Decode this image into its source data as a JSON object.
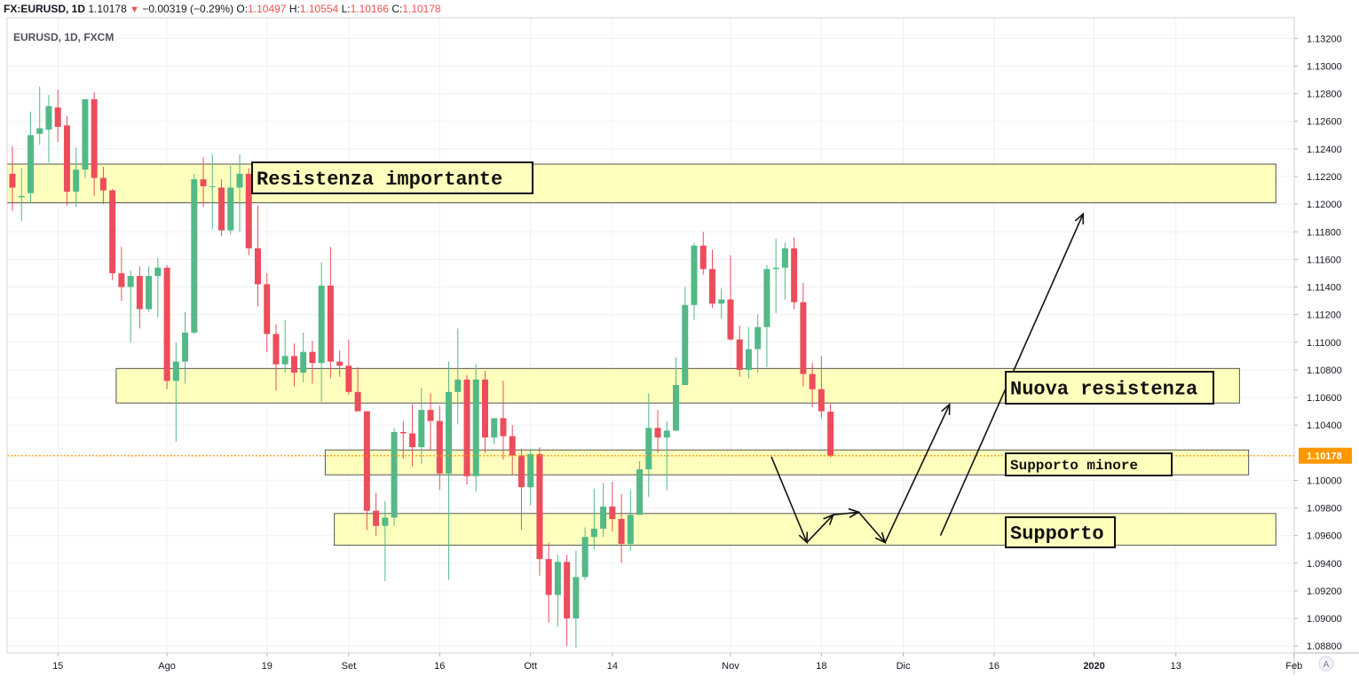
{
  "header": {
    "symbol": "FX:EURUSD, 1D",
    "last": "1.10178",
    "change_arrow": "▼",
    "change": "−0.00319 (−0.29%)",
    "o_label": "O:",
    "o_value": "1.10497",
    "h_label": "H:",
    "h_value": "1.10554",
    "l_label": "L:",
    "l_value": "1.10166",
    "c_label": "C:",
    "c_value": "1.10178"
  },
  "chart_title": "EURUSD, 1D, FXCM",
  "scale_button": "A",
  "colors": {
    "up": "#53b987",
    "down": "#eb4d5c",
    "zone_fill": "#ffffbd",
    "zone_stroke": "#555555",
    "price_line": "#ff9800",
    "grid": "#eef0f3"
  },
  "chart_data": {
    "type": "candlestick",
    "title": "EURUSD, 1D, FXCM",
    "ylim": [
      1.0875,
      1.1335
    ],
    "y_ticks": [
      "1.13200",
      "1.13000",
      "1.12800",
      "1.12600",
      "1.12400",
      "1.12200",
      "1.12000",
      "1.11800",
      "1.11600",
      "1.11400",
      "1.11200",
      "1.11000",
      "1.10800",
      "1.10600",
      "1.10400",
      "1.10000",
      "1.09800",
      "1.09600",
      "1.09400",
      "1.09200",
      "1.09000",
      "1.08800"
    ],
    "x_ticks": [
      {
        "label": "15",
        "index": 5
      },
      {
        "label": "Ago",
        "index": 17
      },
      {
        "label": "19",
        "index": 28
      },
      {
        "label": "Set",
        "index": 37
      },
      {
        "label": "16",
        "index": 47
      },
      {
        "label": "Ott",
        "index": 57
      },
      {
        "label": "14",
        "index": 66
      },
      {
        "label": "Nov",
        "index": 79
      },
      {
        "label": "18",
        "index": 89
      },
      {
        "label": "Dic",
        "index": 98
      },
      {
        "label": "16",
        "index": 108
      },
      {
        "label": "2020",
        "index": 119
      },
      {
        "label": "13",
        "index": 128
      },
      {
        "label": "Feb",
        "index": 141
      }
    ],
    "last_price_label": "1.10178",
    "last_price": 1.10178,
    "candles": [
      {
        "o": 1.1222,
        "h": 1.1242,
        "l": 1.1195,
        "c": 1.1212
      },
      {
        "o": 1.1205,
        "h": 1.1226,
        "l": 1.1188,
        "c": 1.1206
      },
      {
        "o": 1.1208,
        "h": 1.1267,
        "l": 1.1201,
        "c": 1.125
      },
      {
        "o": 1.1251,
        "h": 1.1285,
        "l": 1.1243,
        "c": 1.1255
      },
      {
        "o": 1.1254,
        "h": 1.1279,
        "l": 1.123,
        "c": 1.1271
      },
      {
        "o": 1.127,
        "h": 1.1283,
        "l": 1.1245,
        "c": 1.1256
      },
      {
        "o": 1.1257,
        "h": 1.1264,
        "l": 1.1199,
        "c": 1.1209
      },
      {
        "o": 1.1209,
        "h": 1.1241,
        "l": 1.1198,
        "c": 1.1225
      },
      {
        "o": 1.1225,
        "h": 1.1276,
        "l": 1.1219,
        "c": 1.1276
      },
      {
        "o": 1.1276,
        "h": 1.1281,
        "l": 1.1206,
        "c": 1.1219
      },
      {
        "o": 1.1219,
        "h": 1.1227,
        "l": 1.12,
        "c": 1.121
      },
      {
        "o": 1.121,
        "h": 1.1211,
        "l": 1.1145,
        "c": 1.115
      },
      {
        "o": 1.115,
        "h": 1.1169,
        "l": 1.113,
        "c": 1.114
      },
      {
        "o": 1.114,
        "h": 1.1152,
        "l": 1.11,
        "c": 1.1148
      },
      {
        "o": 1.1148,
        "h": 1.1155,
        "l": 1.111,
        "c": 1.1124
      },
      {
        "o": 1.1124,
        "h": 1.1155,
        "l": 1.1122,
        "c": 1.1148
      },
      {
        "o": 1.1148,
        "h": 1.1161,
        "l": 1.1118,
        "c": 1.1154
      },
      {
        "o": 1.1154,
        "h": 1.1156,
        "l": 1.1066,
        "c": 1.1072
      },
      {
        "o": 1.1072,
        "h": 1.11,
        "l": 1.1028,
        "c": 1.1086
      },
      {
        "o": 1.1086,
        "h": 1.1122,
        "l": 1.107,
        "c": 1.1107
      },
      {
        "o": 1.1107,
        "h": 1.1222,
        "l": 1.1106,
        "c": 1.1218
      },
      {
        "o": 1.1218,
        "h": 1.1234,
        "l": 1.1198,
        "c": 1.1213
      },
      {
        "o": 1.1213,
        "h": 1.1236,
        "l": 1.1182,
        "c": 1.1213
      },
      {
        "o": 1.1212,
        "h": 1.1218,
        "l": 1.1177,
        "c": 1.1181
      },
      {
        "o": 1.1181,
        "h": 1.1228,
        "l": 1.1178,
        "c": 1.1212
      },
      {
        "o": 1.1212,
        "h": 1.1236,
        "l": 1.118,
        "c": 1.1222
      },
      {
        "o": 1.1222,
        "h": 1.1226,
        "l": 1.1163,
        "c": 1.1168
      },
      {
        "o": 1.1168,
        "h": 1.1199,
        "l": 1.1126,
        "c": 1.1142
      },
      {
        "o": 1.1142,
        "h": 1.115,
        "l": 1.1093,
        "c": 1.1106
      },
      {
        "o": 1.1106,
        "h": 1.1113,
        "l": 1.1065,
        "c": 1.1084
      },
      {
        "o": 1.1084,
        "h": 1.1116,
        "l": 1.1078,
        "c": 1.109
      },
      {
        "o": 1.109,
        "h": 1.1099,
        "l": 1.1068,
        "c": 1.1078
      },
      {
        "o": 1.1078,
        "h": 1.1107,
        "l": 1.1071,
        "c": 1.1093
      },
      {
        "o": 1.1093,
        "h": 1.1101,
        "l": 1.107,
        "c": 1.1085
      },
      {
        "o": 1.1085,
        "h": 1.1158,
        "l": 1.1057,
        "c": 1.1141
      },
      {
        "o": 1.1141,
        "h": 1.1169,
        "l": 1.1074,
        "c": 1.1086
      },
      {
        "o": 1.1086,
        "h": 1.1094,
        "l": 1.1075,
        "c": 1.1083
      },
      {
        "o": 1.1083,
        "h": 1.1102,
        "l": 1.1062,
        "c": 1.1064
      },
      {
        "o": 1.1064,
        "h": 1.1082,
        "l": 1.1052,
        "c": 1.105
      },
      {
        "o": 1.105,
        "h": 1.105,
        "l": 1.0964,
        "c": 1.0978
      },
      {
        "o": 1.0978,
        "h": 1.0991,
        "l": 1.096,
        "c": 1.0967
      },
      {
        "o": 1.0967,
        "h": 1.0985,
        "l": 1.0927,
        "c": 1.0973
      },
      {
        "o": 1.0973,
        "h": 1.1038,
        "l": 1.0967,
        "c": 1.1035
      },
      {
        "o": 1.1035,
        "h": 1.1043,
        "l": 1.1016,
        "c": 1.1034
      },
      {
        "o": 1.1034,
        "h": 1.1055,
        "l": 1.101,
        "c": 1.1024
      },
      {
        "o": 1.1024,
        "h": 1.1067,
        "l": 1.1012,
        "c": 1.1051
      },
      {
        "o": 1.1051,
        "h": 1.1063,
        "l": 1.1022,
        "c": 1.1043
      },
      {
        "o": 1.1043,
        "h": 1.1054,
        "l": 1.0993,
        "c": 1.1005
      },
      {
        "o": 1.1005,
        "h": 1.1086,
        "l": 1.0928,
        "c": 1.1064
      },
      {
        "o": 1.1064,
        "h": 1.111,
        "l": 1.1041,
        "c": 1.1073
      },
      {
        "o": 1.1073,
        "h": 1.1076,
        "l": 1.0997,
        "c": 1.1003
      },
      {
        "o": 1.1003,
        "h": 1.1084,
        "l": 1.0992,
        "c": 1.1073
      },
      {
        "o": 1.1073,
        "h": 1.1079,
        "l": 1.102,
        "c": 1.1031
      },
      {
        "o": 1.1031,
        "h": 1.1045,
        "l": 1.1026,
        "c": 1.1045
      },
      {
        "o": 1.1045,
        "h": 1.1072,
        "l": 1.1015,
        "c": 1.1032
      },
      {
        "o": 1.1032,
        "h": 1.104,
        "l": 1.1004,
        "c": 1.1018
      },
      {
        "o": 1.1018,
        "h": 1.1023,
        "l": 1.0964,
        "c": 1.0995
      },
      {
        "o": 1.0995,
        "h": 1.1023,
        "l": 1.0982,
        "c": 1.1019
      },
      {
        "o": 1.1019,
        "h": 1.1024,
        "l": 1.0931,
        "c": 1.0943
      },
      {
        "o": 1.0943,
        "h": 1.0955,
        "l": 1.0897,
        "c": 1.0917
      },
      {
        "o": 1.0917,
        "h": 1.0946,
        "l": 1.0894,
        "c": 1.0941
      },
      {
        "o": 1.0941,
        "h": 1.0946,
        "l": 1.088,
        "c": 1.09
      },
      {
        "o": 1.09,
        "h": 1.0949,
        "l": 1.0879,
        "c": 1.093
      },
      {
        "o": 1.093,
        "h": 1.0966,
        "l": 1.0928,
        "c": 1.0959
      },
      {
        "o": 1.0959,
        "h": 1.0994,
        "l": 1.095,
        "c": 1.0965
      },
      {
        "o": 1.0965,
        "h": 1.0998,
        "l": 1.0959,
        "c": 1.0981
      },
      {
        "o": 1.0981,
        "h": 1.0999,
        "l": 1.0963,
        "c": 1.0972
      },
      {
        "o": 1.0972,
        "h": 1.099,
        "l": 1.094,
        "c": 1.0954
      },
      {
        "o": 1.0954,
        "h": 1.0993,
        "l": 1.0949,
        "c": 1.0975
      },
      {
        "o": 1.0975,
        "h": 1.1014,
        "l": 1.0975,
        "c": 1.1008
      },
      {
        "o": 1.1008,
        "h": 1.1063,
        "l": 1.0988,
        "c": 1.1038
      },
      {
        "o": 1.1038,
        "h": 1.1051,
        "l": 1.102,
        "c": 1.1031
      },
      {
        "o": 1.1031,
        "h": 1.1043,
        "l": 1.0993,
        "c": 1.1036
      },
      {
        "o": 1.1036,
        "h": 1.1089,
        "l": 1.1036,
        "c": 1.1069
      },
      {
        "o": 1.1069,
        "h": 1.114,
        "l": 1.1069,
        "c": 1.1127
      },
      {
        "o": 1.1127,
        "h": 1.1172,
        "l": 1.1116,
        "c": 1.117
      },
      {
        "o": 1.117,
        "h": 1.118,
        "l": 1.1149,
        "c": 1.1153
      },
      {
        "o": 1.1153,
        "h": 1.1167,
        "l": 1.1125,
        "c": 1.1128
      },
      {
        "o": 1.1128,
        "h": 1.1139,
        "l": 1.1117,
        "c": 1.1131
      },
      {
        "o": 1.1131,
        "h": 1.1163,
        "l": 1.1101,
        "c": 1.1102
      },
      {
        "o": 1.1102,
        "h": 1.1112,
        "l": 1.1075,
        "c": 1.108
      },
      {
        "o": 1.108,
        "h": 1.1111,
        "l": 1.1074,
        "c": 1.1095
      },
      {
        "o": 1.1095,
        "h": 1.112,
        "l": 1.1078,
        "c": 1.1111
      },
      {
        "o": 1.1111,
        "h": 1.1156,
        "l": 1.1082,
        "c": 1.1153
      },
      {
        "o": 1.1153,
        "h": 1.1175,
        "l": 1.1121,
        "c": 1.1154
      },
      {
        "o": 1.1154,
        "h": 1.1172,
        "l": 1.1131,
        "c": 1.1168
      },
      {
        "o": 1.1168,
        "h": 1.1176,
        "l": 1.1124,
        "c": 1.1129
      },
      {
        "o": 1.1129,
        "h": 1.1143,
        "l": 1.1068,
        "c": 1.1077
      },
      {
        "o": 1.1077,
        "h": 1.1085,
        "l": 1.1053,
        "c": 1.1066
      },
      {
        "o": 1.1066,
        "h": 1.109,
        "l": 1.1045,
        "c": 1.105
      },
      {
        "o": 1.10497,
        "h": 1.10554,
        "l": 1.10166,
        "c": 1.10178
      }
    ]
  },
  "annotations": {
    "zones": [
      {
        "name": "zone-resistenza-importante",
        "top": 1.1229,
        "bottom": 1.1201,
        "from_index": 0,
        "to_index": 139
      },
      {
        "name": "zone-nuova-resistenza",
        "top": 1.1081,
        "bottom": 1.1056,
        "from_index": 12,
        "to_index": 135
      },
      {
        "name": "zone-supporto-minore",
        "top": 1.1022,
        "bottom": 1.1004,
        "from_index": 35,
        "to_index": 136
      },
      {
        "name": "zone-supporto",
        "top": 1.0976,
        "bottom": 1.0953,
        "from_index": 36,
        "to_index": 139
      }
    ],
    "labels": [
      {
        "name": "label-resistenza-importante",
        "text": "Resistenza importante"
      },
      {
        "name": "label-nuova-resistenza",
        "text": "Nuova resistenza"
      },
      {
        "name": "label-supporto-minore",
        "text": "Supporto minore"
      },
      {
        "name": "label-supporto",
        "text": "Supporto"
      }
    ],
    "path_points": [
      {
        "index": 83.5,
        "price": 1.1017
      },
      {
        "index": 87.4,
        "price": 1.0955
      },
      {
        "index": 90.3,
        "price": 1.0975
      },
      {
        "index": 93.1,
        "price": 1.0977
      },
      {
        "index": 96.0,
        "price": 1.0955
      },
      {
        "index": 103.1,
        "price": 1.1055
      }
    ],
    "second_arrow": [
      {
        "index": 102.1,
        "price": 1.096
      },
      {
        "index": 117.8,
        "price": 1.1193
      }
    ]
  }
}
